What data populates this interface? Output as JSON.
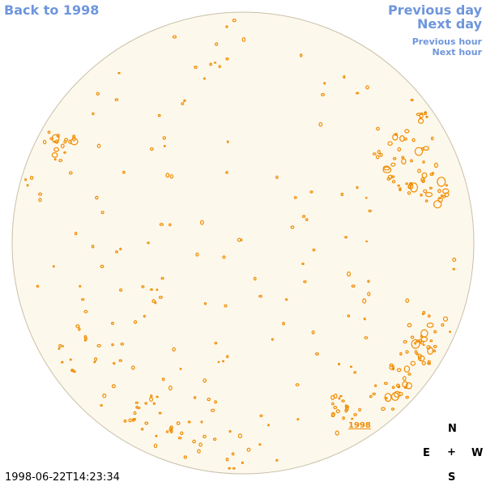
{
  "nav": {
    "back": "Back to 1998",
    "previous_day": "Previous day",
    "next_day": "Next day",
    "previous_hour": "Previous hour",
    "next_hour": "Next hour"
  },
  "timestamp": "1998-06-22T14:23:34",
  "compass": {
    "north": "N",
    "east": "E",
    "west": "W",
    "south": "S",
    "center": "+"
  },
  "region_label": "1998",
  "colors": {
    "disk_fill": "#fdf8ec",
    "disk_edge": "#c9c0a8",
    "contour": "#f08c00",
    "link": "#6f96dc"
  }
}
